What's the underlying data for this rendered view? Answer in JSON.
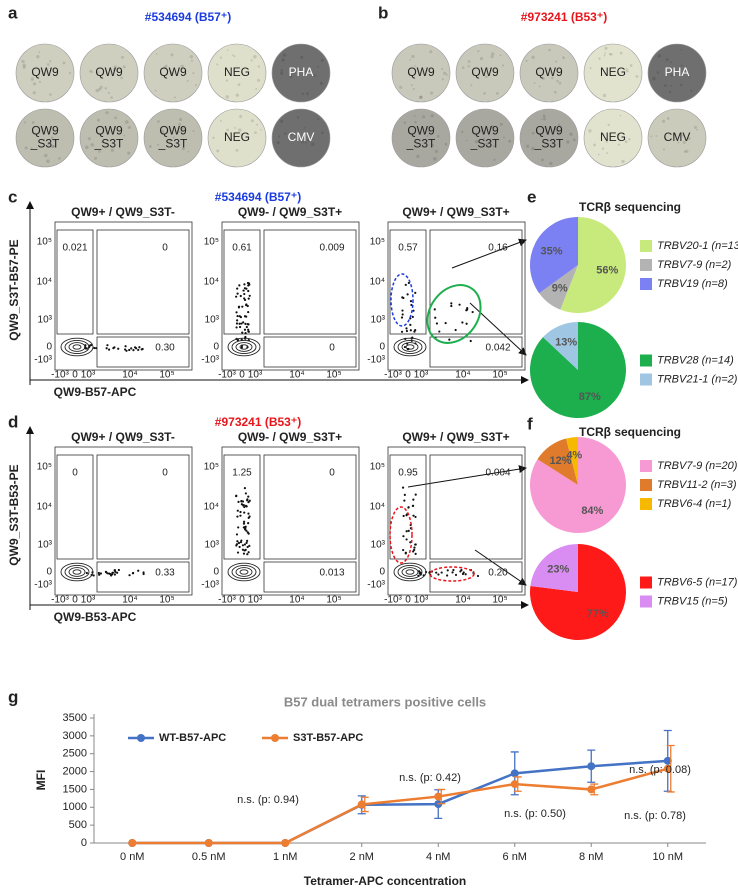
{
  "panel_labels": [
    "a",
    "b",
    "c",
    "d",
    "e",
    "f",
    "g"
  ],
  "elispot": [
    {
      "title": "#534694 (B57⁺)",
      "title_color": "#1a3be0",
      "rows": [
        [
          {
            "lines": [
              "QW9"
            ],
            "color": "#cfcfc0"
          },
          {
            "lines": [
              "QW9"
            ],
            "color": "#cfcfc0"
          },
          {
            "lines": [
              "QW9"
            ],
            "color": "#cfcfc0"
          },
          {
            "lines": [
              "NEG"
            ],
            "color": "#dfe0cb"
          },
          {
            "lines": [
              "PHA"
            ],
            "color": "#6f6f6f"
          }
        ],
        [
          {
            "lines": [
              "QW9",
              "_S3T"
            ],
            "color": "#bdbdb0"
          },
          {
            "lines": [
              "QW9",
              "_S3T"
            ],
            "color": "#bdbdb0"
          },
          {
            "lines": [
              "QW9",
              "_S3T"
            ],
            "color": "#bdbdb0"
          },
          {
            "lines": [
              "NEG"
            ],
            "color": "#dfe0cb"
          },
          {
            "lines": [
              "CMV"
            ],
            "color": "#6f6f6f"
          }
        ]
      ]
    },
    {
      "title": "#973241 (B53⁺)",
      "title_color": "#e8141a",
      "rows": [
        [
          {
            "lines": [
              "QW9"
            ],
            "color": "#c9c9bb"
          },
          {
            "lines": [
              "QW9"
            ],
            "color": "#c9c9bb"
          },
          {
            "lines": [
              "QW9"
            ],
            "color": "#c9c9bb"
          },
          {
            "lines": [
              "NEG"
            ],
            "color": "#e2e3ce"
          },
          {
            "lines": [
              "PHA"
            ],
            "color": "#6f6f6f"
          }
        ],
        [
          {
            "lines": [
              "QW9",
              "_S3T"
            ],
            "color": "#a9a8a0"
          },
          {
            "lines": [
              "QW9",
              "_S3T"
            ],
            "color": "#a9a8a0"
          },
          {
            "lines": [
              "QW9",
              "_S3T"
            ],
            "color": "#a9a8a0"
          },
          {
            "lines": [
              "NEG"
            ],
            "color": "#e2e3ce"
          },
          {
            "lines": [
              "CMV"
            ],
            "color": "#cbcbbc"
          }
        ]
      ]
    }
  ],
  "flow": [
    {
      "title": "#534694 (B57⁺)",
      "title_color": "#1a3be0",
      "y_label": "QW9_S3T-B57-PE",
      "x_label": "QW9-B57-APC",
      "plots": [
        {
          "title": "QW9+ / QW9_S3T-",
          "gates": [
            "0.021",
            "0",
            "0.30"
          ]
        },
        {
          "title": "QW9- / QW9_S3T+",
          "gates": [
            "0.61",
            "0.009",
            "0"
          ]
        },
        {
          "title": "QW9+ / QW9_S3T+",
          "gates": [
            "0.57",
            "0.16",
            "0.042"
          ]
        }
      ]
    },
    {
      "title": "#973241 (B53⁺)",
      "title_color": "#e8141a",
      "y_label": "QW9_S3T-B53-PE",
      "x_label": "QW9-B53-APC",
      "plots": [
        {
          "title": "QW9+ / QW9_S3T-",
          "gates": [
            "0",
            "0",
            "0.33"
          ]
        },
        {
          "title": "QW9- / QW9_S3T+",
          "gates": [
            "1.25",
            "0",
            "0.013"
          ]
        },
        {
          "title": "QW9+ / QW9_S3T+",
          "gates": [
            "0.95",
            "0.004",
            "0.20"
          ]
        }
      ]
    }
  ],
  "flow_y_ticks": [
    "10⁵",
    "10⁴",
    "10³",
    "0",
    "-10³"
  ],
  "flow_x_ticks": [
    "-10³",
    "0",
    "10³",
    "10⁴",
    "10⁵"
  ],
  "pie_titles": [
    "TCRβ sequencing",
    "TCRβ sequencing"
  ],
  "chart_data": [
    {
      "type": "pie",
      "categories": [
        "TRBV20-1 (n=13)",
        "TRBV7-9 (n=2)",
        "TRBV19 (n=8)"
      ],
      "values": [
        56,
        9,
        35
      ],
      "value_labels": [
        "56%",
        "9%",
        "35%"
      ],
      "colors": [
        "#c8ea7c",
        "#b3b3b3",
        "#7b80f2"
      ]
    },
    {
      "type": "pie",
      "categories": [
        "TRBV28 (n=14)",
        "TRBV21-1 (n=2)"
      ],
      "values": [
        87,
        13
      ],
      "value_labels": [
        "87%",
        "13%"
      ],
      "colors": [
        "#1daf4e",
        "#9fc6e2"
      ]
    },
    {
      "type": "pie",
      "categories": [
        "TRBV7-9 (n=20)",
        "TRBV11-2 (n=3)",
        "TRBV6-4 (n=1)"
      ],
      "values": [
        84,
        12,
        4
      ],
      "value_labels": [
        "84%",
        "12%",
        "4%"
      ],
      "colors": [
        "#f79ad3",
        "#e07b2c",
        "#f6b900"
      ]
    },
    {
      "type": "pie",
      "categories": [
        "TRBV6-5 (n=17)",
        "TRBV15 (n=5)"
      ],
      "values": [
        77,
        23
      ],
      "value_labels": [
        "77%",
        "23%"
      ],
      "colors": [
        "#ff1a1a",
        "#d98cf1"
      ]
    },
    {
      "type": "line",
      "title": "B57 dual tetramers positive cells",
      "x_label": "Tetramer-APC concentration",
      "y_label": "MFI",
      "categories": [
        "0 nM",
        "0.5 nM",
        "1 nM",
        "2 nM",
        "4 nM",
        "6 nM",
        "8 nM",
        "10 nM"
      ],
      "series": [
        {
          "name": "WT-B57-APC",
          "color": "#4472c4",
          "values": [
            0,
            0,
            0,
            1070,
            1090,
            1950,
            2150,
            2300
          ],
          "errors": [
            0,
            0,
            0,
            250,
            400,
            600,
            450,
            850
          ]
        },
        {
          "name": "S3T-B57-APC",
          "color": "#ed7d31",
          "values": [
            0,
            0,
            0,
            1080,
            1300,
            1650,
            1500,
            2080
          ],
          "errors": [
            0,
            0,
            0,
            200,
            200,
            200,
            150,
            650
          ]
        }
      ],
      "ylim": [
        0,
        3500
      ],
      "yticks": [
        0,
        500,
        1000,
        1500,
        2000,
        2500,
        3000,
        3500
      ],
      "legend": "upper left",
      "grid": false,
      "annotations": [
        "n.s. (p: 0.94)",
        "n.s. (p: 0.42)",
        "n.s. (p: 0.50)",
        "n.s. (p: 0.08)",
        "n.s. (p: 0.78)"
      ]
    }
  ]
}
